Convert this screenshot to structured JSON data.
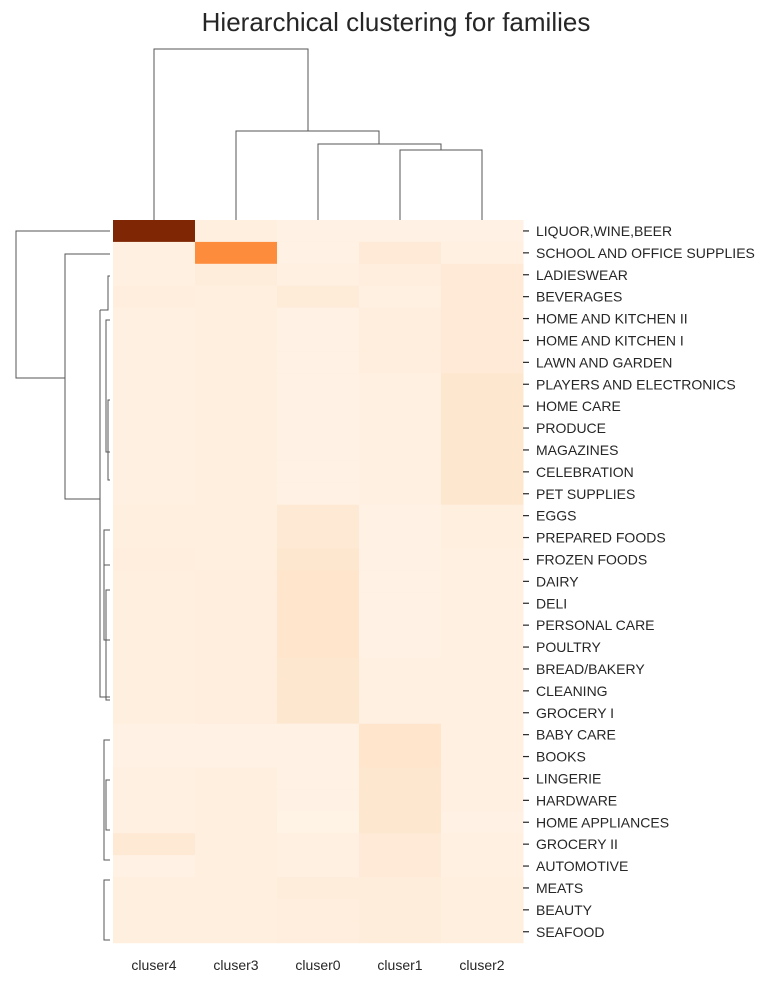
{
  "chart_data": {
    "type": "heatmap",
    "title": "Hierarchical clustering for families",
    "xlabel": "",
    "ylabel": "",
    "colormap": "Oranges",
    "colormap_stops": [
      "#fff5eb",
      "#fee6ce",
      "#fdd0a2",
      "#fdae6b",
      "#fd8d3c",
      "#f16913",
      "#d94801",
      "#a63603",
      "#7f2704"
    ],
    "grid": false,
    "legend": "none",
    "columns": [
      "cluser4",
      "cluser3",
      "cluser0",
      "cluser1",
      "cluser2"
    ],
    "rows": [
      "LIQUOR,WINE,BEER",
      "SCHOOL AND OFFICE SUPPLIES",
      "LADIESWEAR",
      "BEVERAGES",
      "HOME AND KITCHEN II",
      "HOME AND KITCHEN I",
      "LAWN AND GARDEN",
      "PLAYERS AND ELECTRONICS",
      "HOME CARE",
      "PRODUCE",
      "MAGAZINES",
      "CELEBRATION",
      "PET SUPPLIES",
      "EGGS",
      "PREPARED FOODS",
      "FROZEN FOODS",
      "DAIRY",
      "DELI",
      "PERSONAL CARE",
      "POULTRY",
      "BREAD/BAKERY",
      "CLEANING",
      "GROCERY I",
      "BABY CARE",
      "BOOKS",
      "LINGERIE",
      "HARDWARE",
      "HOME APPLIANCES",
      "GROCERY II",
      "AUTOMOTIVE",
      "MEATS",
      "BEAUTY",
      "SEAFOOD"
    ],
    "values": [
      [
        1.0,
        0.05,
        0.03,
        0.03,
        0.03
      ],
      [
        0.04,
        0.5,
        0.03,
        0.09,
        0.04
      ],
      [
        0.04,
        0.07,
        0.04,
        0.06,
        0.09
      ],
      [
        0.06,
        0.05,
        0.08,
        0.04,
        0.09
      ],
      [
        0.04,
        0.05,
        0.03,
        0.06,
        0.09
      ],
      [
        0.04,
        0.05,
        0.03,
        0.06,
        0.09
      ],
      [
        0.04,
        0.05,
        0.03,
        0.06,
        0.09
      ],
      [
        0.04,
        0.05,
        0.03,
        0.04,
        0.12
      ],
      [
        0.04,
        0.05,
        0.03,
        0.04,
        0.12
      ],
      [
        0.04,
        0.05,
        0.03,
        0.04,
        0.12
      ],
      [
        0.04,
        0.05,
        0.03,
        0.04,
        0.12
      ],
      [
        0.04,
        0.05,
        0.03,
        0.04,
        0.12
      ],
      [
        0.04,
        0.05,
        0.03,
        0.04,
        0.12
      ],
      [
        0.05,
        0.05,
        0.1,
        0.03,
        0.05
      ],
      [
        0.05,
        0.05,
        0.1,
        0.03,
        0.05
      ],
      [
        0.06,
        0.05,
        0.12,
        0.03,
        0.04
      ],
      [
        0.05,
        0.06,
        0.13,
        0.03,
        0.04
      ],
      [
        0.05,
        0.06,
        0.13,
        0.03,
        0.04
      ],
      [
        0.05,
        0.06,
        0.13,
        0.03,
        0.04
      ],
      [
        0.05,
        0.06,
        0.13,
        0.03,
        0.04
      ],
      [
        0.05,
        0.06,
        0.12,
        0.04,
        0.04
      ],
      [
        0.05,
        0.06,
        0.12,
        0.04,
        0.04
      ],
      [
        0.05,
        0.06,
        0.12,
        0.04,
        0.04
      ],
      [
        0.03,
        0.03,
        0.03,
        0.13,
        0.04
      ],
      [
        0.03,
        0.03,
        0.03,
        0.13,
        0.04
      ],
      [
        0.04,
        0.05,
        0.03,
        0.12,
        0.04
      ],
      [
        0.04,
        0.05,
        0.03,
        0.12,
        0.04
      ],
      [
        0.04,
        0.05,
        0.02,
        0.12,
        0.03
      ],
      [
        0.1,
        0.05,
        0.04,
        0.09,
        0.04
      ],
      [
        0.03,
        0.05,
        0.04,
        0.09,
        0.04
      ],
      [
        0.05,
        0.05,
        0.07,
        0.07,
        0.05
      ],
      [
        0.05,
        0.05,
        0.06,
        0.07,
        0.05
      ],
      [
        0.05,
        0.05,
        0.06,
        0.07,
        0.05
      ]
    ]
  }
}
